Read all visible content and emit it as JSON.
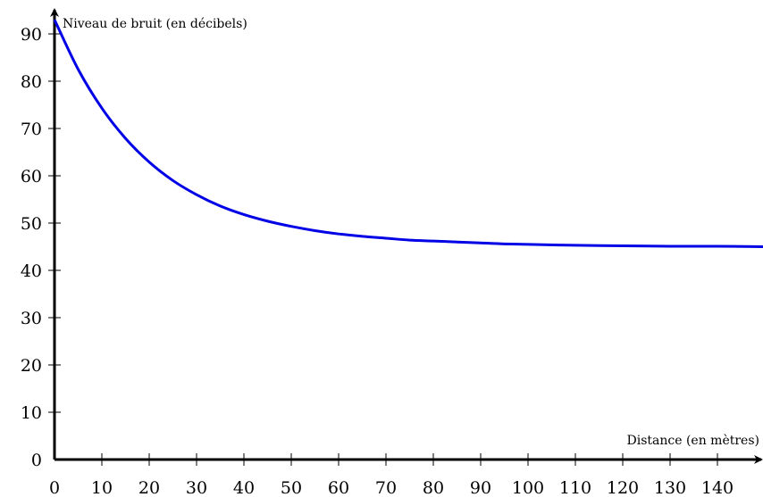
{
  "chart_data": {
    "type": "line",
    "title": "",
    "xlabel": "Distance (en mètres)",
    "ylabel": "Niveau de bruit (en décibels)",
    "xlim": [
      0,
      150
    ],
    "ylim": [
      0,
      90
    ],
    "x_ticks": [
      0,
      10,
      20,
      30,
      40,
      50,
      60,
      70,
      80,
      90,
      100,
      110,
      120,
      130,
      140
    ],
    "y_ticks": [
      0,
      10,
      20,
      30,
      40,
      50,
      60,
      70,
      80,
      90
    ],
    "grid": false,
    "series": [
      {
        "color": "#0000e6",
        "x": [
          0,
          5,
          10,
          15,
          20,
          25,
          30,
          35,
          40,
          45,
          50,
          55,
          60,
          65,
          70,
          75,
          80,
          85,
          90,
          95,
          100,
          110,
          120,
          130,
          140,
          150
        ],
        "y": [
          93,
          82.5,
          74.3,
          67.9,
          62.9,
          59,
          56,
          53.6,
          51.8,
          50.4,
          49.3,
          48.4,
          47.7,
          47.2,
          46.8,
          46.4,
          46.2,
          46,
          45.8,
          45.6,
          45.5,
          45.3,
          45.2,
          45.1,
          45.1,
          45
        ]
      }
    ]
  }
}
